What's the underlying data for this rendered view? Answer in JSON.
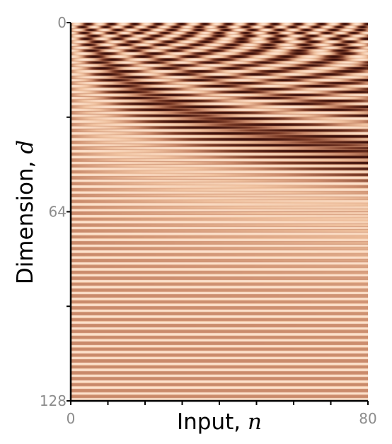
{
  "chart_data": {
    "type": "heatmap",
    "description_values": "sinusoidal positional-encoding style heatmap",
    "xlabel": {
      "text": "Input, ",
      "var": "n"
    },
    "ylabel": {
      "text": "Dimension, ",
      "var": "d"
    },
    "xlim": [
      0,
      80
    ],
    "ylim": [
      0,
      128
    ],
    "y_inverted": true,
    "x_ticks": [
      0,
      10,
      20,
      30,
      40,
      50,
      60,
      70,
      80
    ],
    "x_tick_labels": [
      "0",
      "80"
    ],
    "y_ticks": [
      0,
      32,
      64,
      96,
      128
    ],
    "y_tick_labels": [
      "0",
      "64",
      "128"
    ],
    "rows": 128,
    "cols": 80,
    "colormap": [
      "#3b0f0a",
      "#7a3a26",
      "#c9896a",
      "#f0c2a0",
      "#fde2cd"
    ],
    "grid": false,
    "legend": "none"
  }
}
